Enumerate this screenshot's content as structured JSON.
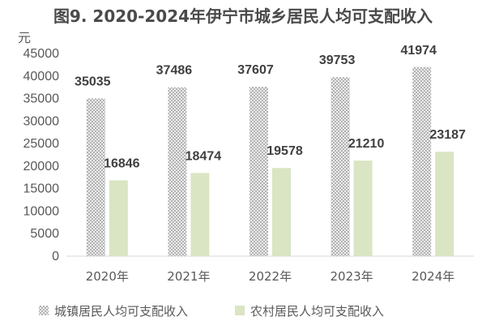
{
  "chart_data": {
    "type": "bar",
    "title": "图9. 2020-2024年伊宁市城乡居民人均可支配收入",
    "unit_label": "元",
    "categories": [
      "2020年",
      "2021年",
      "2022年",
      "2023年",
      "2024年"
    ],
    "series": [
      {
        "name": "城镇居民人均可支配收入",
        "values": [
          35035,
          37486,
          37607,
          39753,
          41974
        ],
        "color": "#bfbfbf",
        "pattern": "crosshatch"
      },
      {
        "name": "农村居民人均可支配收入",
        "values": [
          16846,
          18474,
          19578,
          21210,
          23187
        ],
        "color": "#d9e5c3",
        "pattern": "solid"
      }
    ],
    "ylim": [
      0,
      45000
    ],
    "yticks": [
      0,
      5000,
      10000,
      15000,
      20000,
      25000,
      30000,
      35000,
      40000,
      45000
    ],
    "grid": false,
    "legend_position": "bottom"
  }
}
